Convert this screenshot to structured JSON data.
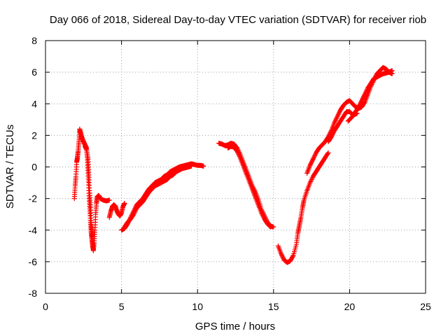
{
  "chart_data": {
    "type": "scatter",
    "title": "Day 066 of 2018, Sidereal Day-to-day VTEC variation (SDTVAR) for receiver riob",
    "xlabel": "GPS time / hours",
    "ylabel": "SDTVAR / TECUs",
    "xlim": [
      0,
      25
    ],
    "ylim": [
      -8,
      8
    ],
    "xticks": [
      "0",
      "5",
      "10",
      "15",
      "20",
      "25"
    ],
    "yticks": [
      "-8",
      "-6",
      "-4",
      "-2",
      "0",
      "2",
      "4",
      "6",
      "8"
    ],
    "grid": true,
    "marker": "+",
    "series": [
      {
        "name": "SDTVAR",
        "color": "#ff0000",
        "segments": [
          [
            [
              1.9,
              -2.0
            ],
            [
              1.95,
              -1.2
            ],
            [
              2.0,
              -0.6
            ],
            [
              2.05,
              0.3
            ],
            [
              2.1,
              0.6
            ],
            [
              2.15,
              1.0
            ],
            [
              2.2,
              1.6
            ],
            [
              2.25,
              2.3
            ],
            [
              2.3,
              2.2
            ],
            [
              2.4,
              1.8
            ],
            [
              2.5,
              1.6
            ],
            [
              2.6,
              1.4
            ],
            [
              2.7,
              1.2
            ],
            [
              2.75,
              0.6
            ],
            [
              2.8,
              -0.4
            ],
            [
              2.85,
              -1.5
            ],
            [
              2.9,
              -2.5
            ],
            [
              2.95,
              -3.4
            ],
            [
              3.0,
              -4.1
            ],
            [
              3.05,
              -4.6
            ],
            [
              3.1,
              -5.0
            ],
            [
              3.15,
              -5.3
            ],
            [
              3.2,
              -4.8
            ],
            [
              3.25,
              -4.0
            ],
            [
              3.3,
              -3.0
            ],
            [
              3.35,
              -2.3
            ],
            [
              3.4,
              -1.9
            ],
            [
              3.5,
              -1.8
            ],
            [
              3.6,
              -2.0
            ],
            [
              3.8,
              -2.1
            ],
            [
              4.0,
              -2.15
            ],
            [
              4.2,
              -2.1
            ]
          ],
          [
            [
              2.6,
              1.3
            ],
            [
              2.7,
              1.1
            ],
            [
              2.8,
              0.5
            ],
            [
              2.85,
              -0.5
            ],
            [
              2.9,
              -1.5
            ],
            [
              2.95,
              -2.4
            ],
            [
              3.0,
              -3.4
            ],
            [
              3.05,
              -4.2
            ],
            [
              3.1,
              -4.8
            ],
            [
              3.15,
              -5.2
            ]
          ],
          [
            [
              2.25,
              2.4
            ],
            [
              2.35,
              2.0
            ],
            [
              2.45,
              1.7
            ],
            [
              2.55,
              1.5
            ]
          ],
          [
            [
              4.2,
              -3.2
            ],
            [
              4.3,
              -2.8
            ],
            [
              4.4,
              -2.5
            ],
            [
              4.5,
              -2.4
            ],
            [
              4.6,
              -2.5
            ],
            [
              4.7,
              -2.8
            ],
            [
              4.8,
              -3.0
            ],
            [
              4.9,
              -3.1
            ],
            [
              5.0,
              -2.9
            ],
            [
              5.1,
              -2.5
            ],
            [
              5.2,
              -2.3
            ]
          ],
          [
            [
              5.0,
              -4.0
            ],
            [
              5.2,
              -3.9
            ],
            [
              5.4,
              -3.6
            ],
            [
              5.6,
              -3.2
            ],
            [
              5.8,
              -2.8
            ],
            [
              6.0,
              -2.4
            ],
            [
              6.2,
              -2.2
            ],
            [
              6.4,
              -2.0
            ],
            [
              6.6,
              -1.7
            ],
            [
              6.8,
              -1.4
            ],
            [
              7.0,
              -1.2
            ],
            [
              7.2,
              -1.0
            ],
            [
              7.4,
              -0.9
            ],
            [
              7.6,
              -0.8
            ],
            [
              7.8,
              -0.6
            ],
            [
              8.0,
              -0.5
            ],
            [
              8.2,
              -0.3
            ],
            [
              8.4,
              -0.2
            ],
            [
              8.6,
              -0.1
            ],
            [
              8.8,
              0.0
            ],
            [
              9.0,
              0.05
            ],
            [
              9.2,
              0.1
            ],
            [
              9.4,
              0.15
            ],
            [
              9.6,
              0.2
            ],
            [
              9.8,
              0.15
            ],
            [
              10.0,
              0.1
            ],
            [
              10.2,
              0.1
            ],
            [
              10.4,
              0.05
            ]
          ],
          [
            [
              5.2,
              -3.8
            ],
            [
              5.4,
              -3.5
            ],
            [
              5.6,
              -3.3
            ],
            [
              5.8,
              -3.0
            ],
            [
              6.0,
              -2.6
            ],
            [
              6.2,
              -2.4
            ],
            [
              6.4,
              -2.2
            ],
            [
              6.6,
              -1.9
            ],
            [
              6.8,
              -1.6
            ],
            [
              7.0,
              -1.4
            ],
            [
              7.2,
              -1.2
            ],
            [
              7.4,
              -1.1
            ],
            [
              7.6,
              -1.0
            ],
            [
              7.8,
              -0.9
            ],
            [
              8.0,
              -0.8
            ],
            [
              8.2,
              -0.6
            ],
            [
              8.4,
              -0.5
            ],
            [
              8.6,
              -0.3
            ],
            [
              8.8,
              -0.2
            ],
            [
              9.0,
              -0.1
            ],
            [
              9.2,
              -0.05
            ],
            [
              9.4,
              0.0
            ],
            [
              9.6,
              0.05
            ]
          ],
          [
            [
              11.4,
              1.5
            ],
            [
              11.6,
              1.45
            ],
            [
              11.8,
              1.35
            ],
            [
              12.0,
              1.4
            ],
            [
              12.2,
              1.5
            ],
            [
              12.4,
              1.45
            ],
            [
              12.6,
              1.2
            ],
            [
              12.8,
              0.8
            ],
            [
              13.0,
              0.3
            ],
            [
              13.2,
              -0.2
            ],
            [
              13.4,
              -0.7
            ],
            [
              13.6,
              -1.2
            ],
            [
              13.8,
              -1.6
            ],
            [
              14.0,
              -2.1
            ],
            [
              14.2,
              -2.7
            ],
            [
              14.4,
              -3.1
            ],
            [
              14.6,
              -3.5
            ],
            [
              14.8,
              -3.75
            ],
            [
              15.0,
              -3.8
            ]
          ],
          [
            [
              12.0,
              1.2
            ],
            [
              12.2,
              1.3
            ],
            [
              12.4,
              1.25
            ],
            [
              12.6,
              1.0
            ],
            [
              12.8,
              0.6
            ],
            [
              13.0,
              0.1
            ],
            [
              13.2,
              -0.4
            ],
            [
              13.4,
              -0.9
            ],
            [
              13.6,
              -1.4
            ],
            [
              13.8,
              -1.9
            ],
            [
              14.0,
              -2.4
            ],
            [
              14.2,
              -2.9
            ],
            [
              14.4,
              -3.3
            ],
            [
              14.6,
              -3.6
            ],
            [
              14.8,
              -3.8
            ]
          ],
          [
            [
              15.3,
              -5.0
            ],
            [
              15.5,
              -5.5
            ],
            [
              15.7,
              -5.9
            ],
            [
              15.9,
              -6.05
            ],
            [
              16.1,
              -5.95
            ],
            [
              16.3,
              -5.6
            ],
            [
              16.5,
              -4.9
            ],
            [
              16.6,
              -4.2
            ],
            [
              16.7,
              -3.7
            ],
            [
              16.8,
              -3.2
            ],
            [
              16.9,
              -2.6
            ],
            [
              17.0,
              -2.1
            ],
            [
              17.2,
              -1.5
            ],
            [
              17.4,
              -1.0
            ],
            [
              17.6,
              -0.6
            ],
            [
              17.8,
              -0.3
            ],
            [
              18.0,
              0.0
            ],
            [
              18.2,
              0.3
            ],
            [
              18.4,
              0.6
            ],
            [
              18.6,
              0.9
            ]
          ],
          [
            [
              17.2,
              -0.4
            ],
            [
              17.4,
              0.1
            ],
            [
              17.6,
              0.5
            ],
            [
              17.8,
              0.9
            ],
            [
              18.0,
              1.2
            ],
            [
              18.2,
              1.4
            ],
            [
              18.4,
              1.6
            ],
            [
              18.6,
              1.9
            ],
            [
              18.8,
              2.3
            ],
            [
              19.0,
              2.8
            ],
            [
              19.2,
              3.2
            ],
            [
              19.4,
              3.6
            ],
            [
              19.6,
              3.9
            ],
            [
              19.8,
              4.1
            ],
            [
              20.0,
              4.2
            ],
            [
              20.2,
              4.0
            ],
            [
              20.4,
              3.8
            ],
            [
              20.6,
              3.7
            ],
            [
              20.8,
              3.8
            ],
            [
              21.0,
              4.1
            ],
            [
              21.2,
              4.6
            ],
            [
              21.4,
              5.1
            ],
            [
              21.6,
              5.5
            ],
            [
              21.8,
              5.9
            ],
            [
              22.0,
              6.1
            ],
            [
              22.2,
              6.3
            ],
            [
              22.4,
              6.2
            ],
            [
              22.6,
              6.0
            ],
            [
              22.8,
              5.9
            ]
          ],
          [
            [
              18.6,
              1.6
            ],
            [
              18.8,
              1.9
            ],
            [
              19.0,
              2.3
            ],
            [
              19.2,
              2.6
            ],
            [
              19.4,
              2.9
            ],
            [
              19.6,
              3.2
            ],
            [
              19.8,
              3.5
            ],
            [
              20.0,
              3.5
            ],
            [
              20.2,
              3.3
            ],
            [
              20.4,
              3.5
            ],
            [
              20.6,
              3.8
            ],
            [
              20.8,
              4.2
            ],
            [
              21.0,
              4.6
            ],
            [
              21.2,
              5.0
            ],
            [
              21.4,
              5.3
            ],
            [
              21.6,
              5.6
            ],
            [
              21.8,
              5.7
            ],
            [
              22.0,
              5.8
            ],
            [
              22.2,
              5.9
            ],
            [
              22.4,
              5.95
            ],
            [
              22.6,
              6.0
            ],
            [
              22.8,
              6.1
            ]
          ],
          [
            [
              19.9,
              2.9
            ],
            [
              20.1,
              3.1
            ],
            [
              20.3,
              3.3
            ],
            [
              20.5,
              3.4
            ]
          ]
        ]
      }
    ]
  }
}
